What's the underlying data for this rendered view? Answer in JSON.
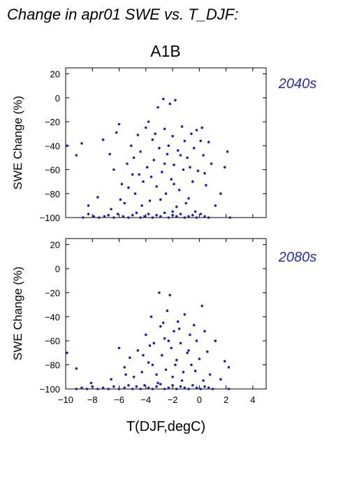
{
  "page_title": "Change in apr01 SWE vs. T_DJF:",
  "scenario_label": "A1B",
  "colors": {
    "points": "#1f1fb0",
    "period_label": "#2b2bb0",
    "axis": "#000000",
    "text": "#000000"
  },
  "chart_data": [
    {
      "type": "scatter",
      "period_label": "2040s",
      "xlabel": "",
      "ylabel": "SWE Change (%)",
      "xlim": [
        -10,
        5
      ],
      "ylim": [
        -100,
        25
      ],
      "yticks": [
        20,
        0,
        -20,
        -40,
        -60,
        -80,
        -100
      ],
      "xticks": [
        -10,
        -8,
        -6,
        -4,
        -2,
        0,
        2,
        4
      ],
      "grid": false,
      "points": [
        [
          -8.7,
          -100
        ],
        [
          -8.3,
          -97
        ],
        [
          -7.9,
          -99
        ],
        [
          -7.5,
          -100
        ],
        [
          -7.1,
          -99
        ],
        [
          -6.8,
          -98
        ],
        [
          -6.4,
          -100
        ],
        [
          -6.1,
          -97
        ],
        [
          -5.7,
          -99
        ],
        [
          -5.3,
          -100
        ],
        [
          -5.0,
          -98
        ],
        [
          -4.7,
          -96
        ],
        [
          -4.4,
          -100
        ],
        [
          -4.1,
          -99
        ],
        [
          -3.8,
          -97
        ],
        [
          -3.5,
          -100
        ],
        [
          -3.2,
          -98
        ],
        [
          -2.9,
          -99
        ],
        [
          -2.6,
          -96
        ],
        [
          -2.3,
          -100
        ],
        [
          -2.0,
          -98
        ],
        [
          -1.7,
          -99
        ],
        [
          -1.4,
          -97
        ],
        [
          -1.1,
          -100
        ],
        [
          -0.8,
          -99
        ],
        [
          -0.5,
          -98
        ],
        [
          -0.2,
          -100
        ],
        [
          0.1,
          -97
        ],
        [
          0.4,
          -99
        ],
        [
          0.7,
          -100
        ],
        [
          -9.2,
          -48
        ],
        [
          -8.8,
          -38
        ],
        [
          -8.3,
          -90
        ],
        [
          -7.6,
          -83
        ],
        [
          -7.2,
          -35
        ],
        [
          -6.7,
          -47
        ],
        [
          -6.4,
          -60
        ],
        [
          -6.2,
          -29
        ],
        [
          -6.0,
          -22
        ],
        [
          -5.8,
          -72
        ],
        [
          -5.6,
          -88
        ],
        [
          -5.4,
          -55
        ],
        [
          -5.1,
          -40
        ],
        [
          -5.0,
          -64
        ],
        [
          -4.8,
          -80
        ],
        [
          -4.6,
          -31
        ],
        [
          -4.4,
          -45
        ],
        [
          -4.2,
          -70
        ],
        [
          -4.0,
          -25
        ],
        [
          -3.9,
          -58
        ],
        [
          -3.7,
          -86
        ],
        [
          -3.5,
          -35
        ],
        [
          -3.4,
          -52
        ],
        [
          -3.2,
          -74
        ],
        [
          -3.1,
          -8
        ],
        [
          -3.0,
          -42
        ],
        [
          -2.8,
          -62
        ],
        [
          -2.7,
          -1
        ],
        [
          -2.6,
          -26
        ],
        [
          -2.5,
          -80
        ],
        [
          -2.4,
          -47
        ],
        [
          -2.2,
          -5
        ],
        [
          -2.1,
          -68
        ],
        [
          -2.0,
          -32
        ],
        [
          -1.9,
          -56
        ],
        [
          -1.8,
          -2
        ],
        [
          -1.7,
          -91
        ],
        [
          -1.6,
          -44
        ],
        [
          -1.5,
          -77
        ],
        [
          -1.3,
          -24
        ],
        [
          -1.2,
          -60
        ],
        [
          -1.1,
          -36
        ],
        [
          -0.9,
          -50
        ],
        [
          -0.8,
          -84
        ],
        [
          -0.6,
          -30
        ],
        [
          -0.5,
          -70
        ],
        [
          -0.4,
          -42
        ],
        [
          -0.2,
          -27
        ],
        [
          -0.1,
          -61
        ],
        [
          0.1,
          -36
        ],
        [
          0.3,
          -48
        ],
        [
          0.5,
          -73
        ],
        [
          0.7,
          -37
        ],
        [
          0.9,
          -55
        ],
        [
          1.2,
          -90
        ],
        [
          1.6,
          -80
        ],
        [
          1.9,
          -58
        ],
        [
          2.1,
          -45
        ],
        [
          2.3,
          -100
        ],
        [
          -9.9,
          -40
        ],
        [
          -5.3,
          -75
        ],
        [
          -4.9,
          -50
        ],
        [
          -4.3,
          -90
        ],
        [
          -3.6,
          -66
        ],
        [
          -3.3,
          -30
        ],
        [
          -2.9,
          -85
        ],
        [
          -2.3,
          -40
        ],
        [
          -1.9,
          -72
        ],
        [
          -1.4,
          -48
        ],
        [
          -1.0,
          -88
        ],
        [
          -0.7,
          -58
        ],
        [
          -0.3,
          -95
        ],
        [
          0.2,
          -25
        ],
        [
          0.4,
          -63
        ],
        [
          -6.6,
          -93
        ],
        [
          -5.9,
          -85
        ],
        [
          -4.5,
          -64
        ],
        [
          -3.8,
          -20
        ],
        [
          -2.6,
          -55
        ],
        [
          -2.0,
          -95
        ]
      ]
    },
    {
      "type": "scatter",
      "period_label": "2080s",
      "xlabel": "T(DJF,degC)",
      "ylabel": "SWE Change (%)",
      "xlim": [
        -10,
        5
      ],
      "ylim": [
        -100,
        25
      ],
      "yticks": [
        20,
        0,
        -20,
        -40,
        -60,
        -80,
        -100
      ],
      "xticks": [
        -10,
        -8,
        -6,
        -4,
        -2,
        0,
        2,
        4
      ],
      "grid": false,
      "points": [
        [
          -9.2,
          -100
        ],
        [
          -8.8,
          -99
        ],
        [
          -8.4,
          -100
        ],
        [
          -8.0,
          -98
        ],
        [
          -7.6,
          -100
        ],
        [
          -7.2,
          -99
        ],
        [
          -6.8,
          -100
        ],
        [
          -6.4,
          -98
        ],
        [
          -6.0,
          -100
        ],
        [
          -5.6,
          -99
        ],
        [
          -5.3,
          -97
        ],
        [
          -5.0,
          -100
        ],
        [
          -4.7,
          -98
        ],
        [
          -4.4,
          -100
        ],
        [
          -4.1,
          -97
        ],
        [
          -3.8,
          -99
        ],
        [
          -3.5,
          -100
        ],
        [
          -3.2,
          -98
        ],
        [
          -2.9,
          -96
        ],
        [
          -2.6,
          -100
        ],
        [
          -2.3,
          -99
        ],
        [
          -2.0,
          -97
        ],
        [
          -1.7,
          -100
        ],
        [
          -1.4,
          -98
        ],
        [
          -1.1,
          -99
        ],
        [
          -0.8,
          -100
        ],
        [
          -0.5,
          -97
        ],
        [
          -0.2,
          -99
        ],
        [
          0.1,
          -100
        ],
        [
          0.4,
          -98
        ],
        [
          0.7,
          -99
        ],
        [
          1.0,
          -100
        ],
        [
          2.2,
          -100
        ],
        [
          -9.9,
          -70
        ],
        [
          -9.2,
          -83
        ],
        [
          -8.1,
          -95
        ],
        [
          -6.6,
          -92
        ],
        [
          -6.0,
          -66
        ],
        [
          -5.6,
          -82
        ],
        [
          -5.2,
          -74
        ],
        [
          -4.9,
          -90
        ],
        [
          -4.6,
          -68
        ],
        [
          -4.3,
          -86
        ],
        [
          -4.0,
          -55
        ],
        [
          -3.8,
          -78
        ],
        [
          -3.6,
          -40
        ],
        [
          -3.4,
          -62
        ],
        [
          -3.2,
          -88
        ],
        [
          -3.0,
          -20
        ],
        [
          -2.9,
          -48
        ],
        [
          -2.8,
          -72
        ],
        [
          -2.6,
          -58
        ],
        [
          -2.5,
          -84
        ],
        [
          -2.4,
          -35
        ],
        [
          -2.2,
          -22
        ],
        [
          -2.1,
          -66
        ],
        [
          -2.0,
          -90
        ],
        [
          -1.9,
          -52
        ],
        [
          -1.7,
          -76
        ],
        [
          -1.6,
          -44
        ],
        [
          -1.4,
          -62
        ],
        [
          -1.2,
          -86
        ],
        [
          -1.1,
          -38
        ],
        [
          -0.9,
          -70
        ],
        [
          -0.7,
          -55
        ],
        [
          -0.6,
          -80
        ],
        [
          -0.4,
          -47
        ],
        [
          -0.2,
          -60
        ],
        [
          0.0,
          -75
        ],
        [
          0.2,
          -31
        ],
        [
          0.4,
          -52
        ],
        [
          0.6,
          -69
        ],
        [
          0.8,
          -88
        ],
        [
          1.2,
          -60
        ],
        [
          1.6,
          -92
        ],
        [
          1.9,
          -77
        ],
        [
          2.2,
          -82
        ],
        [
          -3.7,
          -64
        ],
        [
          -3.1,
          -95
        ],
        [
          -2.7,
          -45
        ],
        [
          -1.8,
          -80
        ],
        [
          -1.3,
          -93
        ],
        [
          -0.8,
          -68
        ],
        [
          -0.3,
          -85
        ],
        [
          0.3,
          -93
        ],
        [
          -4.2,
          -72
        ],
        [
          -5.5,
          -88
        ],
        [
          -3.5,
          -80
        ],
        [
          -2.3,
          -60
        ],
        [
          -1.5,
          -50
        ]
      ]
    }
  ]
}
